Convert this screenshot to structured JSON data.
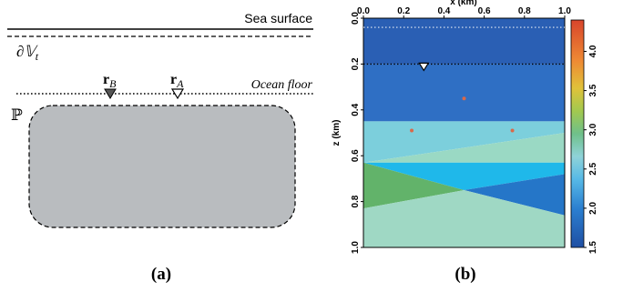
{
  "panel_a": {
    "sea_surface_label": "Sea surface",
    "boundary_label": "∂𝕍",
    "boundary_sub": "t",
    "ocean_floor_label": "Ocean floor",
    "receiver_b_label": "r",
    "receiver_b_sub": "B",
    "receiver_a_label": "r",
    "receiver_a_sub": "A",
    "domain_label": "ℙ",
    "domain_fill": "#b9bcbf",
    "caption": "(a)"
  },
  "panel_b": {
    "caption": "(b)",
    "colors": {
      "water": "#2a5fb4",
      "layer1": "#2f6fc4",
      "teal": "#7ccfdc",
      "green_light": "#9ad9c4",
      "cyan": "#1fb8ea",
      "blue_wedge": "#2576c8",
      "green": "#62b36a",
      "bottom": "#9fd8c4",
      "marker": "#d9694a"
    },
    "chart_data": {
      "type": "heatmap",
      "title": "",
      "xlabel": "x (km)",
      "ylabel": "z (km)",
      "xlim": [
        0.0,
        1.0
      ],
      "ylim": [
        1.0,
        0.0
      ],
      "xticks": [
        "0.0",
        "0.2",
        "0.4",
        "0.6",
        "0.8",
        "1.0"
      ],
      "yticks": [
        "0.0",
        "0.2",
        "0.4",
        "0.6",
        "0.8",
        "1.0"
      ],
      "sea_surface_depth": 0.04,
      "ocean_floor_depth": 0.2,
      "receiver": {
        "x": 0.3,
        "z": 0.2
      },
      "sources": [
        {
          "x": 0.5,
          "z": 0.35
        },
        {
          "x": 0.24,
          "z": 0.49
        },
        {
          "x": 0.74,
          "z": 0.49
        }
      ],
      "colorbar": {
        "min": 1.5,
        "max": 4.4,
        "ticks": [
          "1.5",
          "2.0",
          "2.5",
          "3.0",
          "3.5",
          "4.0"
        ]
      }
    }
  }
}
